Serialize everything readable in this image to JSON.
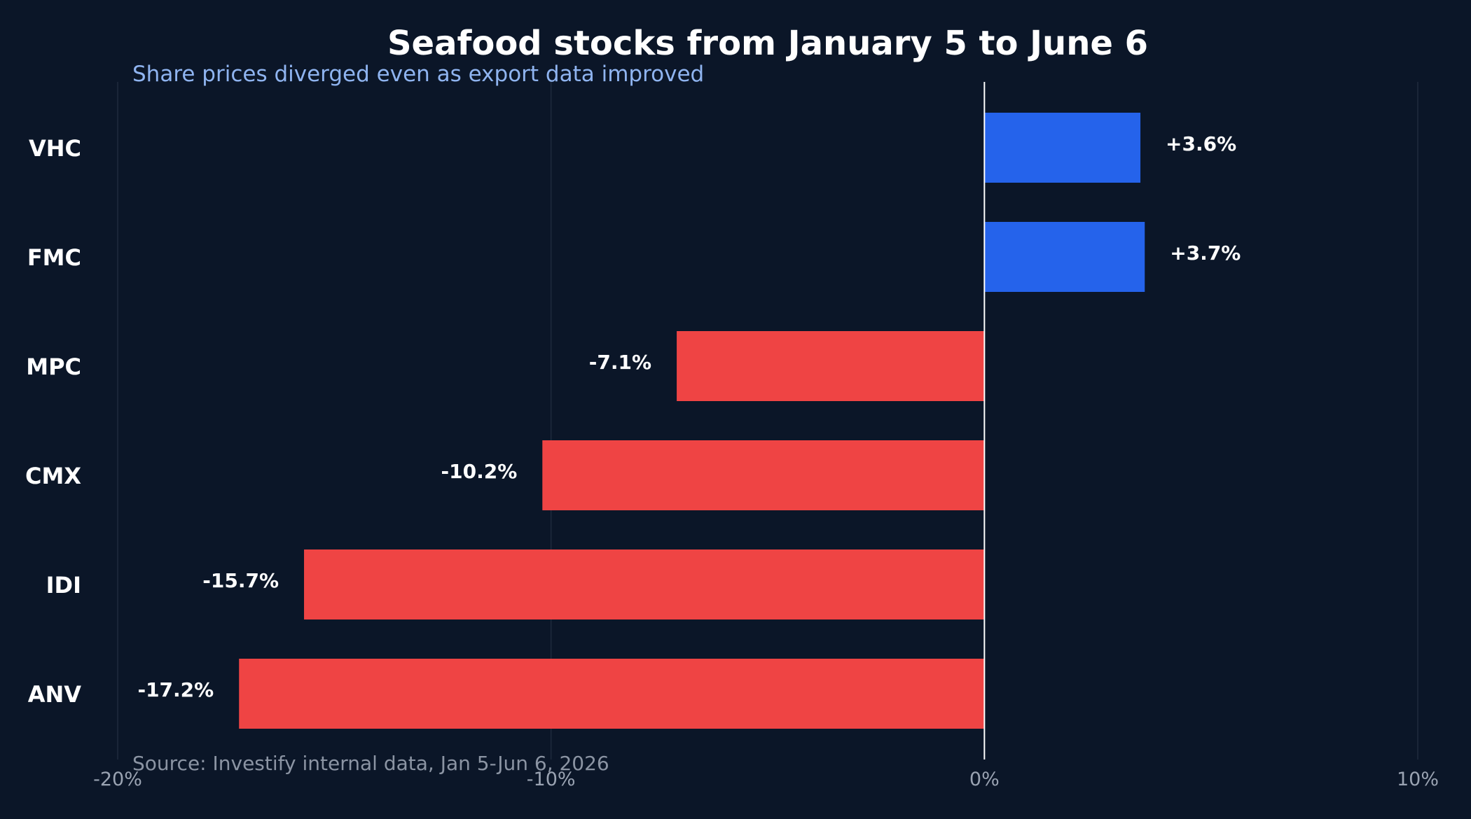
{
  "chart_data": {
    "type": "bar",
    "orientation": "horizontal",
    "title": "Seafood stocks from January 5 to June 6",
    "subtitle": "Share prices diverged even as export data improved",
    "source": "Source: Investify internal data, Jan 5-Jun 6, 2026",
    "categories": [
      "VHC",
      "FMC",
      "MPC",
      "CMX",
      "IDI",
      "ANV"
    ],
    "values": [
      3.6,
      3.7,
      -7.1,
      -10.2,
      -15.7,
      -17.2
    ],
    "value_labels": [
      "+3.6%",
      "+3.7%",
      "-7.1%",
      "-10.2%",
      "-15.7%",
      "-17.2%"
    ],
    "xlim": [
      -20,
      10
    ],
    "x_ticks": [
      -20,
      -10,
      0,
      10
    ],
    "x_tick_labels": [
      "-20%",
      "-10%",
      "0%",
      "10%"
    ],
    "xlabel": "",
    "ylabel": "",
    "grid": true,
    "colors": {
      "positive": "#2563eb",
      "negative": "#ef4444",
      "background": "#0b1628",
      "grid": "#1f2a3d",
      "zero_line": "#ffffff"
    }
  }
}
